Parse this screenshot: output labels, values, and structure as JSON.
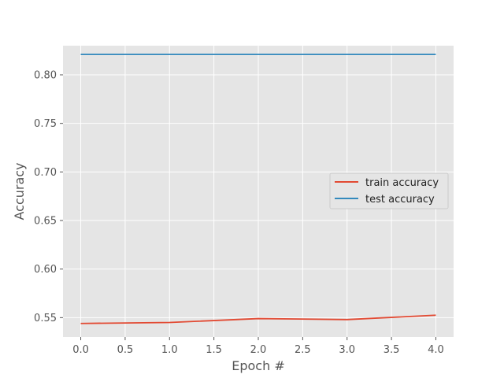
{
  "chart_data": {
    "type": "line",
    "title": "",
    "xlabel": "Epoch #",
    "ylabel": "Accuracy",
    "x": [
      0,
      1,
      2,
      3,
      4
    ],
    "xlim": [
      -0.2,
      4.2
    ],
    "ylim": [
      0.53,
      0.83
    ],
    "xticks": [
      "0.0",
      "0.5",
      "1.0",
      "1.5",
      "2.0",
      "2.5",
      "3.0",
      "3.5",
      "4.0"
    ],
    "yticks": [
      "0.55",
      "0.60",
      "0.65",
      "0.70",
      "0.75",
      "0.80"
    ],
    "grid": true,
    "legend_position": "center-right",
    "series": [
      {
        "name": "train accuracy",
        "color": "#E24A33",
        "values": [
          0.544,
          0.545,
          0.549,
          0.548,
          0.5525
        ]
      },
      {
        "name": "test accuracy",
        "color": "#348ABD",
        "values": [
          0.821,
          0.821,
          0.821,
          0.821,
          0.821
        ]
      }
    ]
  }
}
